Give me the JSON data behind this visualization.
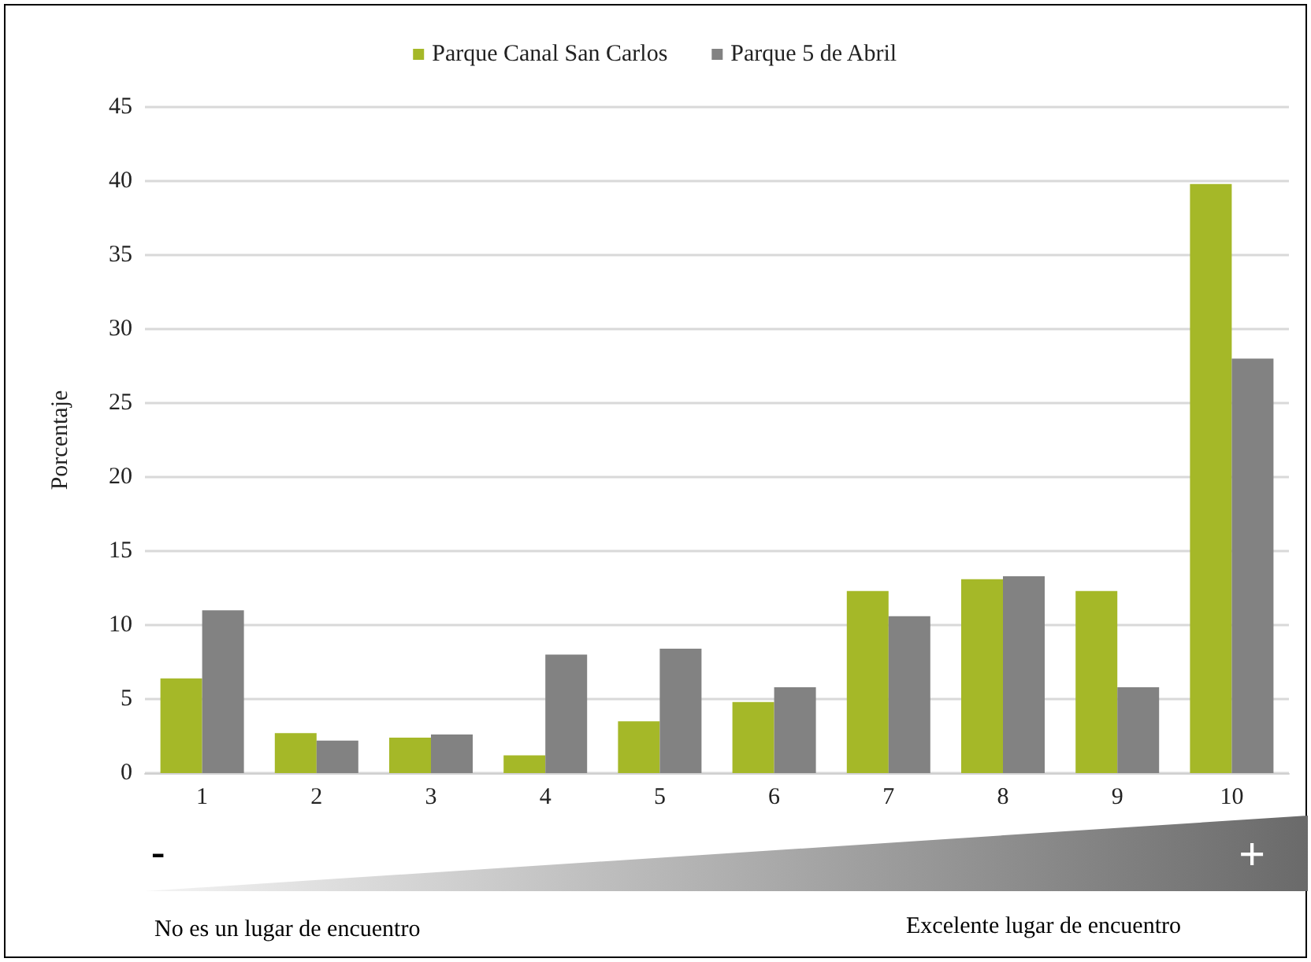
{
  "chart_data": {
    "type": "bar",
    "ylabel": "Porcentaje",
    "categories": [
      "1",
      "2",
      "3",
      "4",
      "5",
      "6",
      "7",
      "8",
      "9",
      "10"
    ],
    "series": [
      {
        "name": "Parque Canal San Carlos",
        "color": "#a5b828",
        "values": [
          6.4,
          2.7,
          2.4,
          1.2,
          3.5,
          4.8,
          12.3,
          13.1,
          12.3,
          39.8
        ]
      },
      {
        "name": "Parque 5 de Abril",
        "color": "#828282",
        "values": [
          11.0,
          2.2,
          2.6,
          8.0,
          8.4,
          5.8,
          10.6,
          13.3,
          5.8,
          28.0
        ]
      }
    ],
    "ylim": [
      0,
      45
    ],
    "yticks": [
      0,
      5,
      10,
      15,
      20,
      25,
      30,
      35,
      40,
      45
    ],
    "grid": "y",
    "legend": "top",
    "annotations": [
      "-",
      "+",
      "No es un lugar de encuentro",
      "Excelente lugar de encuentro"
    ]
  }
}
